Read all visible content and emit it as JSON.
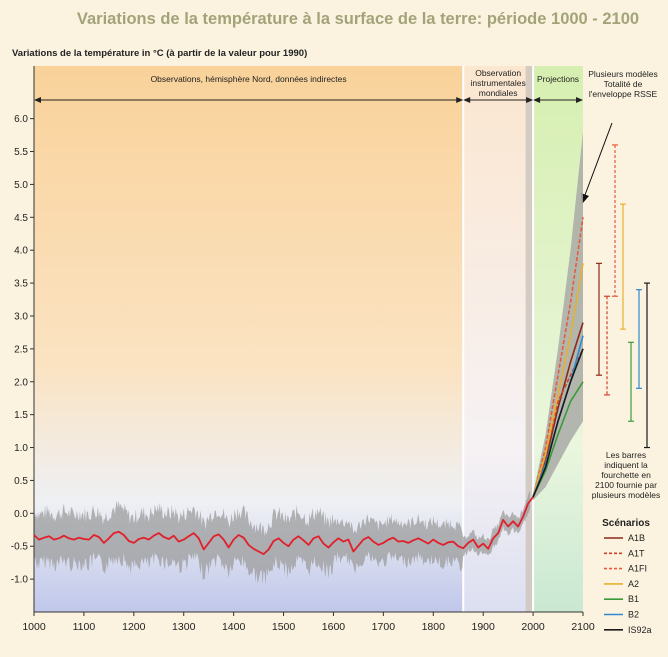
{
  "chart_data": {
    "type": "line",
    "title": "Variations de la température à la surface de la terre: période 1000 - 2100",
    "ylabel": "Variations de la température in °C (à partir de la valeur pour 1990)",
    "xlim": [
      1000,
      2100
    ],
    "ylim": [
      -1.5,
      6.8
    ],
    "x_ticks": [
      1000,
      1100,
      1200,
      1300,
      1400,
      1500,
      1600,
      1700,
      1800,
      1900,
      2000,
      2100
    ],
    "y_ticks": [
      -1.0,
      -0.5,
      0.0,
      0.5,
      1.0,
      1.5,
      2.0,
      2.5,
      3.0,
      3.5,
      4.0,
      4.5,
      5.0,
      5.5,
      6.0
    ],
    "y_tick_labels": [
      "-1.0",
      "-0.5",
      "0.0",
      "0.5",
      "1.0",
      "1.5",
      "2.0",
      "2.5",
      "3.0",
      "3.5",
      "4.0",
      "4.5",
      "5.0",
      "5.5",
      "6.0"
    ],
    "periods": [
      {
        "label": "Observations, hémisphère Nord, données indirectes",
        "from": 1000,
        "to": 1860
      },
      {
        "label": "Observation instrumentales mondiales",
        "from": 1860,
        "to": 2000
      },
      {
        "label": "Projections",
        "from": 2000,
        "to": 2100
      }
    ],
    "envelope_label": "Plusieurs modèles Totalité de l'enveloppe RSSE",
    "bars_note": "Les barres indiquent la fourchette en 2100 fournie par plusieurs modèles",
    "legend_title": "Scénarios",
    "observed": {
      "x": [
        1000,
        1010,
        1020,
        1030,
        1040,
        1050,
        1060,
        1070,
        1080,
        1090,
        1100,
        1110,
        1120,
        1130,
        1140,
        1150,
        1160,
        1170,
        1180,
        1190,
        1200,
        1210,
        1220,
        1230,
        1240,
        1250,
        1260,
        1270,
        1280,
        1290,
        1300,
        1310,
        1320,
        1330,
        1340,
        1350,
        1360,
        1370,
        1380,
        1390,
        1400,
        1410,
        1420,
        1430,
        1440,
        1450,
        1460,
        1470,
        1480,
        1490,
        1500,
        1510,
        1520,
        1530,
        1540,
        1550,
        1560,
        1570,
        1580,
        1590,
        1600,
        1610,
        1620,
        1630,
        1640,
        1650,
        1660,
        1670,
        1680,
        1690,
        1700,
        1710,
        1720,
        1730,
        1740,
        1750,
        1760,
        1770,
        1780,
        1790,
        1800,
        1810,
        1820,
        1830,
        1840,
        1850,
        1860,
        1870,
        1880,
        1890,
        1900,
        1910,
        1920,
        1930,
        1940,
        1950,
        1960,
        1970,
        1980,
        1990,
        2000
      ],
      "y": [
        -0.33,
        -0.4,
        -0.37,
        -0.35,
        -0.4,
        -0.38,
        -0.34,
        -0.38,
        -0.4,
        -0.37,
        -0.39,
        -0.4,
        -0.33,
        -0.36,
        -0.45,
        -0.38,
        -0.3,
        -0.28,
        -0.33,
        -0.42,
        -0.45,
        -0.39,
        -0.37,
        -0.4,
        -0.34,
        -0.3,
        -0.36,
        -0.39,
        -0.34,
        -0.43,
        -0.4,
        -0.35,
        -0.3,
        -0.38,
        -0.55,
        -0.45,
        -0.35,
        -0.32,
        -0.4,
        -0.52,
        -0.4,
        -0.33,
        -0.37,
        -0.48,
        -0.54,
        -0.58,
        -0.62,
        -0.55,
        -0.42,
        -0.38,
        -0.45,
        -0.5,
        -0.4,
        -0.35,
        -0.41,
        -0.48,
        -0.38,
        -0.35,
        -0.46,
        -0.52,
        -0.44,
        -0.38,
        -0.43,
        -0.4,
        -0.58,
        -0.49,
        -0.4,
        -0.36,
        -0.43,
        -0.48,
        -0.45,
        -0.4,
        -0.37,
        -0.43,
        -0.42,
        -0.45,
        -0.41,
        -0.38,
        -0.42,
        -0.46,
        -0.4,
        -0.45,
        -0.48,
        -0.44,
        -0.43,
        -0.5,
        -0.53,
        -0.45,
        -0.4,
        -0.52,
        -0.46,
        -0.54,
        -0.38,
        -0.3,
        -0.1,
        -0.2,
        -0.12,
        -0.2,
        -0.05,
        0.15,
        0.25
      ]
    },
    "projection_envelope": {
      "x": [
        2000,
        2025,
        2050,
        2075,
        2100
      ],
      "upper": [
        0.3,
        1.2,
        2.5,
        4.0,
        5.8
      ],
      "lower": [
        0.2,
        0.4,
        0.75,
        1.1,
        1.4
      ]
    },
    "scenarios": [
      {
        "name": "A1B",
        "color": "#8a2a1a",
        "dash": "solid",
        "x": [
          2000,
          2025,
          2050,
          2075,
          2100
        ],
        "y": [
          0.25,
          0.8,
          1.6,
          2.3,
          2.9
        ],
        "range": [
          2.1,
          3.8
        ]
      },
      {
        "name": "A1T",
        "color": "#d0402a",
        "dash": "dash",
        "x": [
          2000,
          2025,
          2050,
          2075,
          2100
        ],
        "y": [
          0.25,
          0.85,
          1.7,
          2.1,
          2.5
        ],
        "range": [
          1.8,
          3.3
        ]
      },
      {
        "name": "A1FI",
        "color": "#e85a3a",
        "dash": "dash",
        "x": [
          2000,
          2025,
          2050,
          2075,
          2100
        ],
        "y": [
          0.25,
          1.0,
          2.1,
          3.2,
          4.5
        ],
        "range": [
          3.3,
          5.6
        ]
      },
      {
        "name": "A2",
        "color": "#e8b030",
        "dash": "solid",
        "x": [
          2000,
          2025,
          2050,
          2075,
          2100
        ],
        "y": [
          0.25,
          0.9,
          1.8,
          2.7,
          3.8
        ],
        "range": [
          2.8,
          4.7
        ]
      },
      {
        "name": "B1",
        "color": "#3a9a3a",
        "dash": "solid",
        "x": [
          2000,
          2025,
          2050,
          2075,
          2100
        ],
        "y": [
          0.25,
          0.65,
          1.2,
          1.7,
          2.0
        ],
        "range": [
          1.4,
          2.6
        ]
      },
      {
        "name": "B2",
        "color": "#2e8ad0",
        "dash": "solid",
        "x": [
          2000,
          2025,
          2050,
          2075,
          2100
        ],
        "y": [
          0.25,
          0.75,
          1.4,
          2.0,
          2.7
        ],
        "range": [
          1.9,
          3.4
        ]
      },
      {
        "name": "IS92a",
        "color": "#1a1a1a",
        "dash": "solid",
        "x": [
          2000,
          2025,
          2050,
          2075,
          2100
        ],
        "y": [
          0.25,
          0.7,
          1.4,
          2.0,
          2.5
        ],
        "range": [
          1.0,
          3.5
        ]
      }
    ]
  }
}
